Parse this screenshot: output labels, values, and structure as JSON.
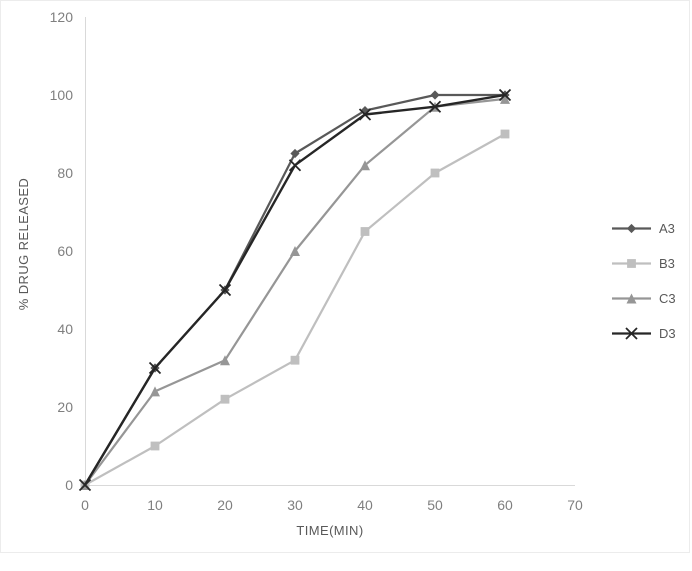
{
  "figure": {
    "background": "#ffffff",
    "frame_border_color": "#ececec"
  },
  "chart_data": {
    "type": "line",
    "title": "",
    "xlabel": "TIME(MIN)",
    "ylabel": "% DRUG RELEASED",
    "x": [
      0,
      10,
      20,
      30,
      40,
      50,
      60
    ],
    "x_ticks": [
      0,
      10,
      20,
      30,
      40,
      50,
      60,
      70
    ],
    "y_ticks": [
      0,
      20,
      40,
      60,
      80,
      100,
      120
    ],
    "xlim": [
      0,
      70
    ],
    "ylim": [
      0,
      120
    ],
    "grid": false,
    "legend_position": "right",
    "axis_line_color": "#d9d9d9",
    "tick_label_color": "#7f7f7f",
    "axis_title_color": "#595959",
    "series": [
      {
        "name": "A3",
        "marker": "diamond",
        "color": "#595959",
        "values": [
          0,
          30,
          50,
          85,
          96,
          100,
          100
        ]
      },
      {
        "name": "B3",
        "marker": "square",
        "color": "#bfbfbf",
        "values": [
          0,
          10,
          22,
          32,
          65,
          80,
          90
        ]
      },
      {
        "name": "C3",
        "marker": "triangle",
        "color": "#969696",
        "values": [
          0,
          24,
          32,
          60,
          82,
          97,
          99
        ]
      },
      {
        "name": "D3",
        "marker": "x",
        "color": "#262626",
        "values": [
          0,
          30,
          50,
          82,
          95,
          97,
          100
        ]
      }
    ]
  }
}
